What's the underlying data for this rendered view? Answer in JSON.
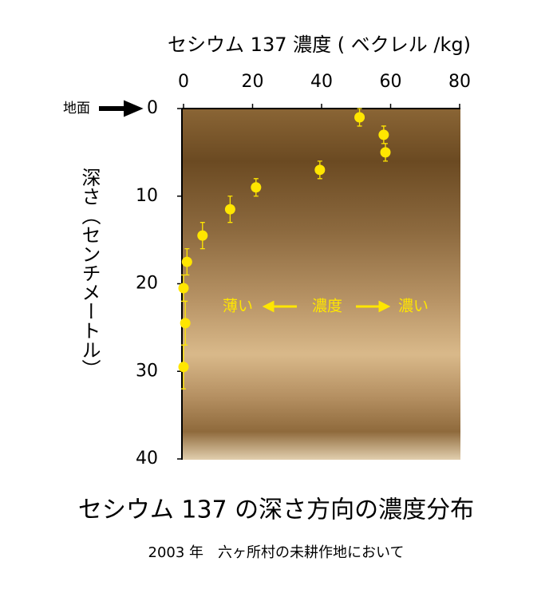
{
  "chart_data": {
    "type": "scatter",
    "title": "セシウム 137 の深さ方向の濃度分布",
    "subtitle": "2003 年　六ヶ所村の未耕作地において",
    "x_label": "セシウム 137 濃度 ( ベクレル /kg)",
    "y_label": "深さ（センチメートル）",
    "annotations": {
      "surface": "地面",
      "low": "薄い",
      "middle": "濃度",
      "high": "濃い"
    },
    "x": [
      51,
      58,
      58.5,
      39.5,
      21,
      13.5,
      5.5,
      1,
      0,
      0.5,
      0
    ],
    "y": [
      1,
      3,
      5,
      7,
      9,
      11.5,
      14.5,
      17.5,
      20.5,
      24.5,
      29.5
    ],
    "yerr": [
      1,
      1,
      1,
      1,
      1,
      1.5,
      1.5,
      1.5,
      1.5,
      2.5,
      2.5
    ],
    "color": "#ffe600",
    "xlim": [
      0,
      80
    ],
    "xticks": [
      0,
      20,
      40,
      60,
      80
    ],
    "ylim": [
      0,
      40
    ],
    "yticks": [
      0,
      10,
      20,
      30,
      40
    ],
    "y_inverted": true,
    "x_axis_position": "top"
  }
}
